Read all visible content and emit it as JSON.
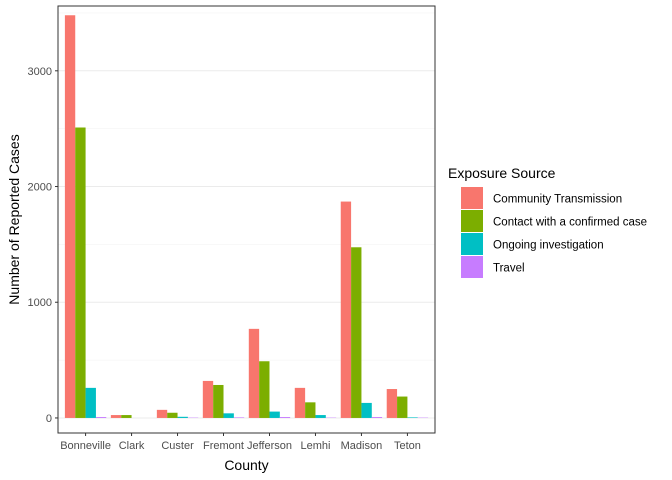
{
  "chart_data": {
    "type": "bar",
    "title": "",
    "xlabel": "County",
    "ylabel": "Number of Reported Cases",
    "ylim": [
      -130,
      3560
    ],
    "yticks": [
      0,
      1000,
      2000,
      3000
    ],
    "ytick_labels": [
      "0",
      "1000",
      "2000",
      "3000"
    ],
    "grid": "major y only",
    "legend_title": "Exposure Source",
    "legend_position": "right",
    "categories": [
      "Bonneville",
      "Clark",
      "Custer",
      "Fremont",
      "Jefferson",
      "Lemhi",
      "Madison",
      "Teton"
    ],
    "series": [
      {
        "name": "Community Transmission",
        "color": "#F8766D",
        "values": [
          3480,
          25,
          70,
          320,
          770,
          260,
          1870,
          250
        ]
      },
      {
        "name": "Contact with a confirmed case",
        "color": "#7CAE00",
        "values": [
          2510,
          25,
          45,
          285,
          490,
          135,
          1475,
          185
        ]
      },
      {
        "name": "Ongoing investigation",
        "color": "#00BFC4",
        "values": [
          260,
          0,
          10,
          40,
          55,
          25,
          130,
          5
        ]
      },
      {
        "name": "Travel",
        "color": "#C77CFF",
        "values": [
          8,
          0,
          3,
          5,
          8,
          3,
          8,
          3
        ]
      }
    ]
  }
}
